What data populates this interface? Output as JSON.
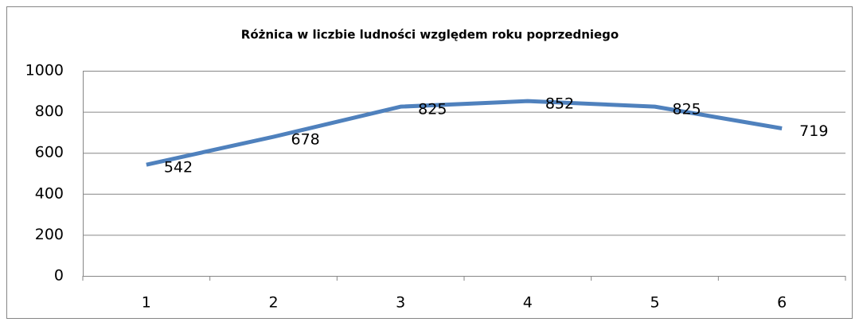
{
  "chart_data": {
    "type": "line",
    "title": "Różnica w liczbie ludności względem roku poprzedniego",
    "categories": [
      "1",
      "2",
      "3",
      "4",
      "5",
      "6"
    ],
    "series": [
      {
        "name": "Różnica",
        "color": "#4f81bd",
        "values": [
          542,
          678,
          825,
          852,
          825,
          719
        ]
      }
    ],
    "ylim": [
      0,
      1000
    ],
    "yticks": [
      0,
      200,
      400,
      600,
      800,
      1000
    ],
    "grid": true
  }
}
